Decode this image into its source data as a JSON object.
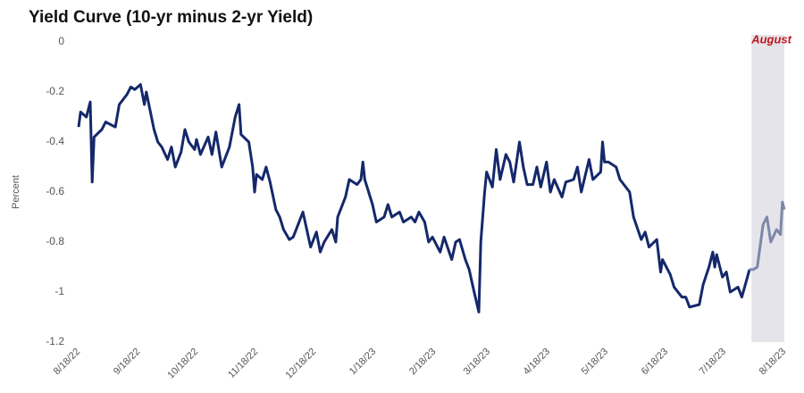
{
  "chart_data": {
    "type": "line",
    "title": "Yield Curve (10-yr minus 2-yr Yield)",
    "y_label": "Percent",
    "color": "#14286a",
    "highlight": {
      "label": "August",
      "from": "8/1/23",
      "to": "8/18/23",
      "fill": "#e4e4ea",
      "label_color": "#c0161e",
      "line_color": "#7d87a8"
    },
    "xlim": [
      "8/18/22",
      "8/18/23"
    ],
    "xticks": [
      "8/18/22",
      "9/18/22",
      "10/18/22",
      "11/18/22",
      "12/18/22",
      "1/18/23",
      "2/18/23",
      "3/18/23",
      "4/18/23",
      "5/18/23",
      "6/18/23",
      "7/18/23",
      "8/18/23"
    ],
    "ylim": [
      -1.2,
      0
    ],
    "yticks": [
      0,
      -0.2,
      -0.4,
      -0.6,
      -0.8,
      -1,
      -1.2
    ],
    "x": [
      "8/18/22",
      "8/19/22",
      "8/22/22",
      "8/24/22",
      "8/25/22",
      "8/26/22",
      "8/30/22",
      "9/1/22",
      "9/6/22",
      "9/8/22",
      "9/12/22",
      "9/14/22",
      "9/16/22",
      "9/19/22",
      "9/21/22",
      "9/22/22",
      "9/26/22",
      "9/28/22",
      "9/30/22",
      "10/3/22",
      "10/5/22",
      "10/7/22",
      "10/10/22",
      "10/12/22",
      "10/14/22",
      "10/17/22",
      "10/18/22",
      "10/20/22",
      "10/24/22",
      "10/26/22",
      "10/28/22",
      "10/31/22",
      "11/2/22",
      "11/4/22",
      "11/7/22",
      "11/9/22",
      "11/10/22",
      "11/14/22",
      "11/16/22",
      "11/17/22",
      "11/18/22",
      "11/21/22",
      "11/23/22",
      "11/25/22",
      "11/28/22",
      "11/30/22",
      "12/2/22",
      "12/5/22",
      "12/7/22",
      "12/9/22",
      "12/12/22",
      "12/14/22",
      "12/16/22",
      "12/19/22",
      "12/21/22",
      "12/23/22",
      "12/27/22",
      "12/29/22",
      "12/30/22",
      "1/3/23",
      "1/5/23",
      "1/9/23",
      "1/11/23",
      "1/12/23",
      "1/13/23",
      "1/17/23",
      "1/19/23",
      "1/23/23",
      "1/25/23",
      "1/27/23",
      "1/31/23",
      "2/2/23",
      "2/6/23",
      "2/8/23",
      "2/10/23",
      "2/13/23",
      "2/15/23",
      "2/17/23",
      "2/21/23",
      "2/23/23",
      "2/27/23",
      "3/1/23",
      "3/3/23",
      "3/6/23",
      "3/8/23",
      "3/10/23",
      "3/13/23",
      "3/14/23",
      "3/16/23",
      "3/17/23",
      "3/20/23",
      "3/22/23",
      "3/24/23",
      "3/27/23",
      "3/29/23",
      "3/31/23",
      "4/3/23",
      "4/5/23",
      "4/7/23",
      "4/10/23",
      "4/12/23",
      "4/14/23",
      "4/17/23",
      "4/19/23",
      "4/21/23",
      "4/25/23",
      "4/27/23",
      "5/1/23",
      "5/3/23",
      "5/5/23",
      "5/9/23",
      "5/11/23",
      "5/15/23",
      "5/16/23",
      "5/17/23",
      "5/19/23",
      "5/23/23",
      "5/25/23",
      "5/30/23",
      "6/1/23",
      "6/5/23",
      "6/7/23",
      "6/9/23",
      "6/13/23",
      "6/15/23",
      "6/16/23",
      "6/20/23",
      "6/22/23",
      "6/26/23",
      "6/28/23",
      "6/30/23",
      "7/5/23",
      "7/7/23",
      "7/10/23",
      "7/12/23",
      "7/13/23",
      "7/14/23",
      "7/17/23",
      "7/19/23",
      "7/21/23",
      "7/25/23",
      "7/27/23",
      "7/31/23",
      "8/2/23",
      "8/4/23",
      "8/7/23",
      "8/9/23",
      "8/11/23",
      "8/14/23",
      "8/16/23",
      "8/17/23",
      "8/18/23"
    ],
    "values": [
      -0.34,
      -0.28,
      -0.3,
      -0.24,
      -0.56,
      -0.38,
      -0.35,
      -0.32,
      -0.34,
      -0.25,
      -0.21,
      -0.18,
      -0.19,
      -0.17,
      -0.25,
      -0.2,
      -0.35,
      -0.4,
      -0.42,
      -0.47,
      -0.42,
      -0.5,
      -0.44,
      -0.35,
      -0.4,
      -0.43,
      -0.39,
      -0.45,
      -0.38,
      -0.45,
      -0.36,
      -0.5,
      -0.46,
      -0.42,
      -0.3,
      -0.25,
      -0.37,
      -0.4,
      -0.5,
      -0.6,
      -0.53,
      -0.55,
      -0.5,
      -0.56,
      -0.67,
      -0.7,
      -0.75,
      -0.79,
      -0.78,
      -0.74,
      -0.68,
      -0.75,
      -0.82,
      -0.76,
      -0.84,
      -0.8,
      -0.75,
      -0.8,
      -0.7,
      -0.62,
      -0.55,
      -0.57,
      -0.55,
      -0.48,
      -0.55,
      -0.65,
      -0.72,
      -0.7,
      -0.65,
      -0.7,
      -0.68,
      -0.72,
      -0.7,
      -0.72,
      -0.68,
      -0.72,
      -0.8,
      -0.78,
      -0.84,
      -0.78,
      -0.87,
      -0.8,
      -0.79,
      -0.87,
      -0.91,
      -0.98,
      -1.08,
      -0.8,
      -0.6,
      -0.52,
      -0.58,
      -0.43,
      -0.55,
      -0.45,
      -0.48,
      -0.56,
      -0.4,
      -0.5,
      -0.57,
      -0.57,
      -0.5,
      -0.58,
      -0.48,
      -0.6,
      -0.55,
      -0.62,
      -0.56,
      -0.55,
      -0.5,
      -0.6,
      -0.47,
      -0.55,
      -0.52,
      -0.4,
      -0.48,
      -0.48,
      -0.5,
      -0.55,
      -0.6,
      -0.7,
      -0.79,
      -0.76,
      -0.82,
      -0.79,
      -0.92,
      -0.87,
      -0.93,
      -0.98,
      -1.02,
      -1.02,
      -1.06,
      -1.05,
      -0.97,
      -0.9,
      -0.84,
      -0.9,
      -0.85,
      -0.94,
      -0.92,
      -1,
      -0.98,
      -1.02,
      -0.91,
      -0.91,
      -0.9,
      -0.73,
      -0.7,
      -0.8,
      -0.75,
      -0.77,
      -0.64,
      -0.67
    ]
  }
}
